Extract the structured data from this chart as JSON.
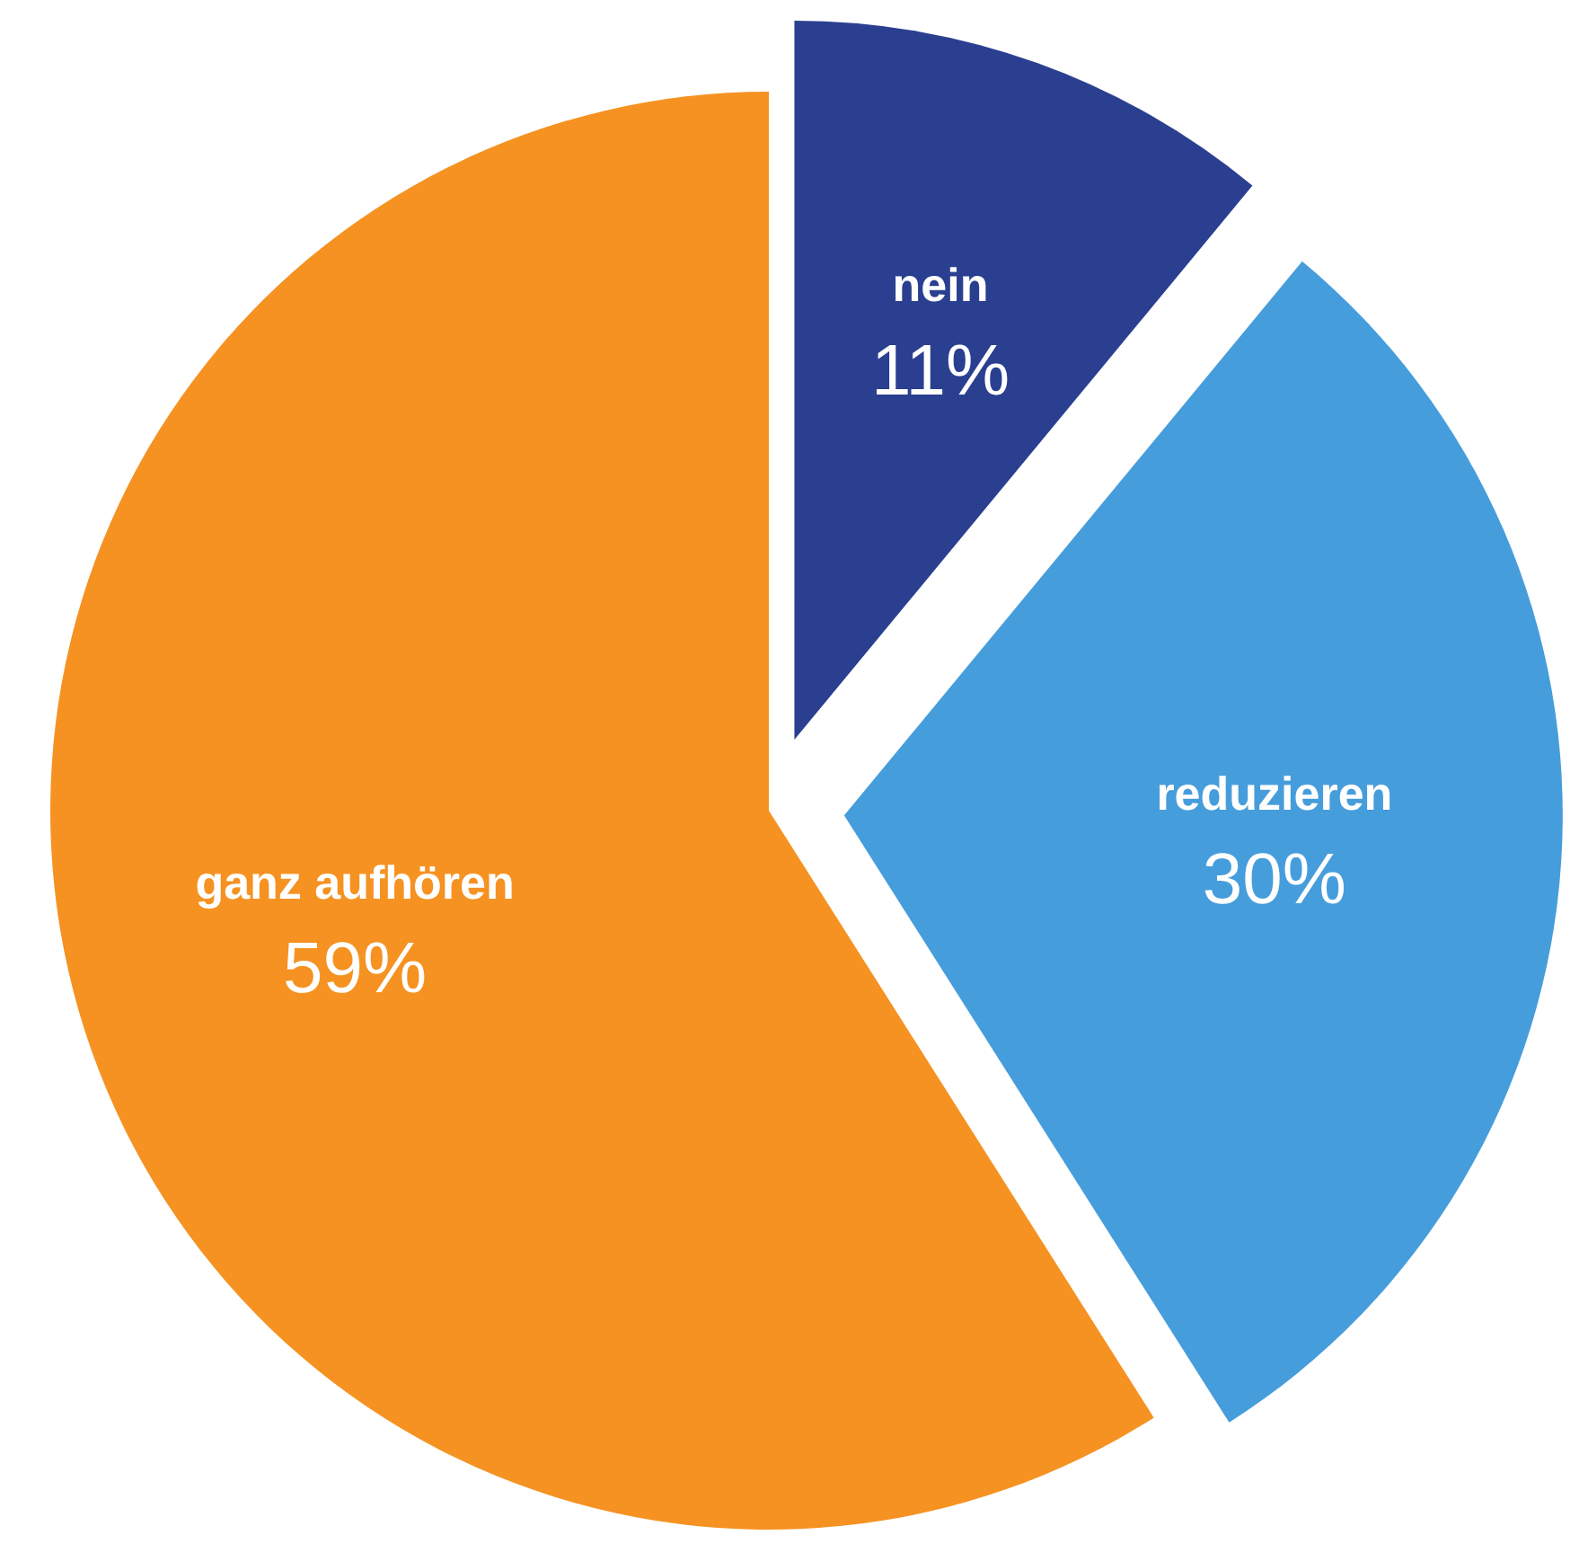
{
  "chart_data": {
    "type": "pie",
    "categories": [
      "nein",
      "reduzieren",
      "ganz aufhören"
    ],
    "values": [
      11,
      30,
      59
    ],
    "value_labels": [
      "11%",
      "30%",
      "59%"
    ],
    "colors": [
      "#2a3f90",
      "#469ddb",
      "#f59222"
    ]
  }
}
